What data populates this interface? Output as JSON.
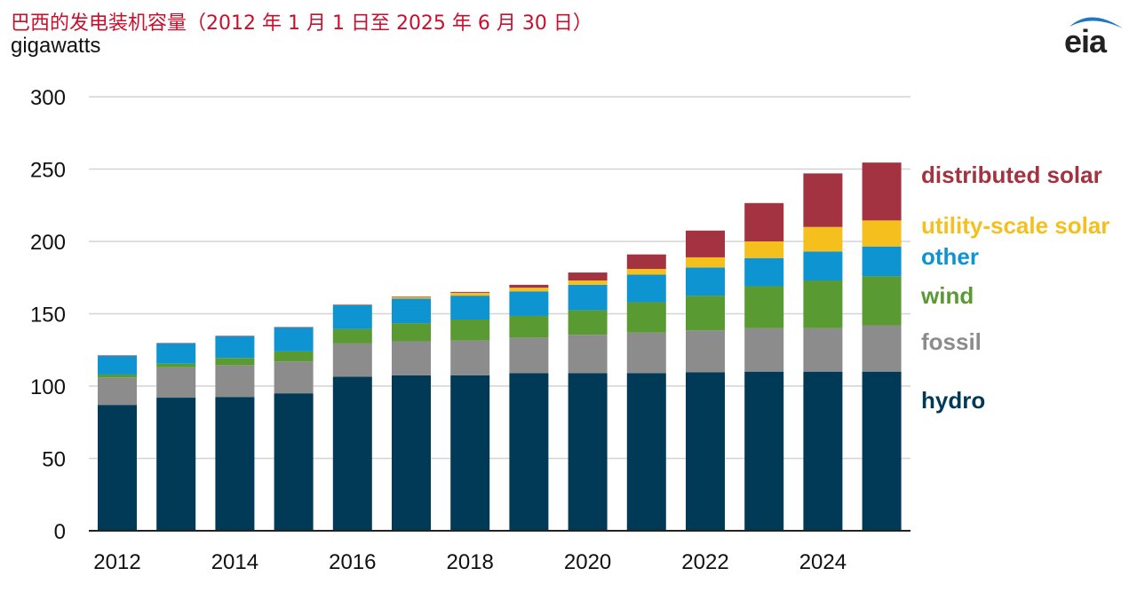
{
  "title": "巴西的发电装机容量（2012 年 1 月 1 日至 2025 年 6 月 30 日）",
  "y_unit": "gigawatts",
  "logo": {
    "text": "eia",
    "accent": "#1f77c4"
  },
  "colors": {
    "title": "#c8102e",
    "hydro": "#003a57",
    "fossil": "#8c8c8c",
    "wind": "#5a9a32",
    "other": "#0f94d2",
    "utility_solar": "#f5bf1e",
    "distributed_solar": "#a33340",
    "grid": "#d4d4d4",
    "axis": "#222222"
  },
  "chart_data": {
    "type": "bar",
    "stacked": true,
    "title": "巴西的发电装机容量（2012 年 1 月 1 日至 2025 年 6 月 30 日）",
    "ylabel": "gigawatts",
    "ylim": [
      0,
      300
    ],
    "yticks": [
      0,
      50,
      100,
      150,
      200,
      250,
      300
    ],
    "categories": [
      "2012",
      "2013",
      "2014",
      "2015",
      "2016",
      "2017",
      "2018",
      "2019",
      "2020",
      "2021",
      "2022",
      "2023",
      "2024",
      "2025"
    ],
    "x_tick_labels": [
      "2012",
      "2014",
      "2016",
      "2018",
      "2020",
      "2022",
      "2024"
    ],
    "grid": true,
    "legend": "right, labels aligned with stacks",
    "series": [
      {
        "name": "hydro",
        "color_key": "hydro",
        "values": [
          87,
          92,
          92.5,
          95,
          106.5,
          107.5,
          107.5,
          109,
          109,
          109,
          109.5,
          110,
          110,
          110
        ]
      },
      {
        "name": "fossil",
        "color_key": "fossil",
        "values": [
          19,
          21,
          22,
          22,
          23,
          23.5,
          24,
          24.5,
          26.5,
          28,
          29,
          30,
          30,
          32
        ]
      },
      {
        "name": "wind",
        "color_key": "wind",
        "values": [
          2,
          2.5,
          5,
          7,
          10,
          12.5,
          14.5,
          15,
          17,
          21,
          24,
          29,
          33,
          34
        ]
      },
      {
        "name": "other",
        "color_key": "other",
        "values": [
          13,
          14,
          15,
          16.5,
          16.5,
          17,
          16.5,
          17,
          17.5,
          19,
          19.5,
          19.5,
          20,
          20.5
        ]
      },
      {
        "name": "utility-scale solar",
        "color_key": "utility_solar",
        "values": [
          0,
          0,
          0,
          0,
          0.2,
          1,
          2,
          2.5,
          3,
          4,
          7,
          11.5,
          17,
          18
        ]
      },
      {
        "name": "distributed solar",
        "color_key": "distributed_solar",
        "values": [
          0.3,
          0.3,
          0.3,
          0.3,
          0.3,
          0.4,
          0.6,
          2,
          5.5,
          10,
          18.5,
          26.5,
          37,
          40
        ]
      }
    ]
  },
  "legend_labels": {
    "distributed_solar": "distributed solar",
    "utility_solar": "utility-scale solar",
    "other": "other",
    "wind": "wind",
    "fossil": "fossil",
    "hydro": "hydro"
  }
}
